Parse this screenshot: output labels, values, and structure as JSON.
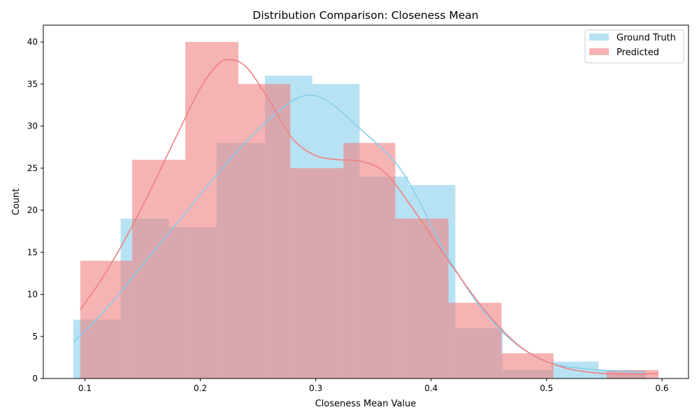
{
  "chart_data": {
    "type": "histogram",
    "title": "Distribution Comparison: Closeness Mean",
    "xlabel": "Closeness Mean Value",
    "ylabel": "Count",
    "xlim": [
      0.064,
      0.623
    ],
    "ylim": [
      0,
      42
    ],
    "x_ticks": [
      0.1,
      0.2,
      0.3,
      0.4,
      0.5,
      0.6
    ],
    "y_ticks": [
      0,
      5,
      10,
      15,
      20,
      25,
      30,
      35,
      40
    ],
    "legend_position": "top-right",
    "series": [
      {
        "name": "Ground Truth",
        "color": "#87ceeb",
        "bins": [
          {
            "x0": 0.09,
            "x1": 0.131,
            "count": 7
          },
          {
            "x0": 0.131,
            "x1": 0.173,
            "count": 19
          },
          {
            "x0": 0.173,
            "x1": 0.214,
            "count": 18
          },
          {
            "x0": 0.214,
            "x1": 0.256,
            "count": 28
          },
          {
            "x0": 0.256,
            "x1": 0.297,
            "count": 36
          },
          {
            "x0": 0.297,
            "x1": 0.338,
            "count": 35
          },
          {
            "x0": 0.338,
            "x1": 0.38,
            "count": 24
          },
          {
            "x0": 0.38,
            "x1": 0.421,
            "count": 23
          },
          {
            "x0": 0.421,
            "x1": 0.462,
            "count": 6
          },
          {
            "x0": 0.462,
            "x1": 0.504,
            "count": 1
          },
          {
            "x0": 0.504,
            "x1": 0.545,
            "count": 2
          },
          {
            "x0": 0.545,
            "x1": 0.586,
            "count": 1
          }
        ],
        "kde": [
          [
            0.09,
            4.3
          ],
          [
            0.12,
            8.5
          ],
          [
            0.15,
            13.5
          ],
          [
            0.18,
            18.5
          ],
          [
            0.21,
            23.5
          ],
          [
            0.24,
            28.2
          ],
          [
            0.27,
            32.0
          ],
          [
            0.29,
            33.6
          ],
          [
            0.31,
            33.0
          ],
          [
            0.34,
            29.5
          ],
          [
            0.37,
            25.5
          ],
          [
            0.39,
            21.0
          ],
          [
            0.41,
            15.5
          ],
          [
            0.44,
            9.0
          ],
          [
            0.47,
            4.5
          ],
          [
            0.5,
            2.0
          ],
          [
            0.53,
            1.2
          ],
          [
            0.56,
            0.9
          ],
          [
            0.586,
            0.7
          ]
        ]
      },
      {
        "name": "Predicted",
        "color": "#f08080",
        "bins": [
          {
            "x0": 0.096,
            "x1": 0.141,
            "count": 14
          },
          {
            "x0": 0.141,
            "x1": 0.187,
            "count": 26
          },
          {
            "x0": 0.187,
            "x1": 0.233,
            "count": 40
          },
          {
            "x0": 0.233,
            "x1": 0.278,
            "count": 35
          },
          {
            "x0": 0.278,
            "x1": 0.324,
            "count": 25
          },
          {
            "x0": 0.324,
            "x1": 0.369,
            "count": 28
          },
          {
            "x0": 0.369,
            "x1": 0.415,
            "count": 19
          },
          {
            "x0": 0.415,
            "x1": 0.461,
            "count": 9
          },
          {
            "x0": 0.461,
            "x1": 0.506,
            "count": 3
          },
          {
            "x0": 0.506,
            "x1": 0.552,
            "count": 0
          },
          {
            "x0": 0.552,
            "x1": 0.597,
            "count": 1
          }
        ],
        "kde": [
          [
            0.096,
            8.2
          ],
          [
            0.12,
            13.0
          ],
          [
            0.15,
            20.5
          ],
          [
            0.18,
            29.0
          ],
          [
            0.2,
            34.5
          ],
          [
            0.215,
            37.3
          ],
          [
            0.225,
            37.9
          ],
          [
            0.24,
            37.0
          ],
          [
            0.26,
            33.0
          ],
          [
            0.28,
            28.5
          ],
          [
            0.3,
            26.5
          ],
          [
            0.32,
            26.0
          ],
          [
            0.34,
            25.8
          ],
          [
            0.36,
            24.5
          ],
          [
            0.38,
            21.0
          ],
          [
            0.4,
            17.0
          ],
          [
            0.42,
            13.0
          ],
          [
            0.45,
            7.5
          ],
          [
            0.48,
            3.5
          ],
          [
            0.51,
            1.5
          ],
          [
            0.54,
            0.7
          ],
          [
            0.57,
            0.5
          ],
          [
            0.597,
            0.6
          ]
        ]
      }
    ]
  }
}
